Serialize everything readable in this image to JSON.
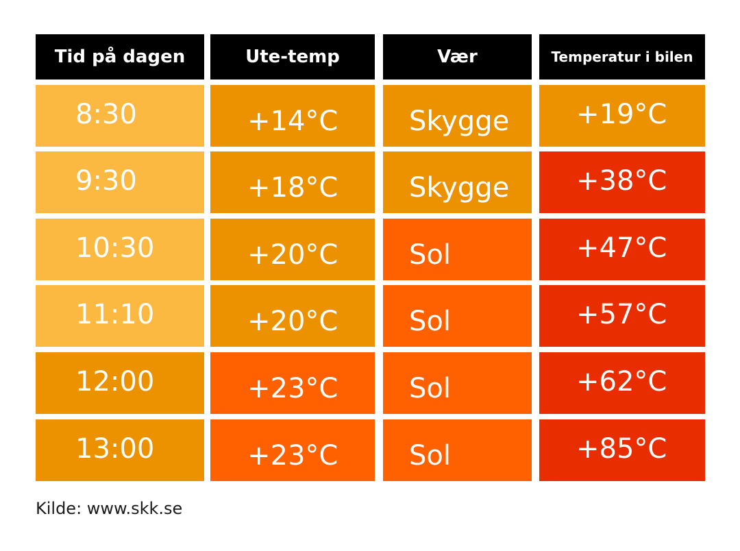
{
  "colors": {
    "header_bg": "#000000",
    "light_amber": "#FBB941",
    "amber": "#EC9200",
    "orange": "#FF6000",
    "red": "#E82E00",
    "text": "#FFFFFF"
  },
  "chart_data": {
    "type": "table",
    "columns": [
      "Tid på dagen",
      "Ute-temp",
      "Vær",
      "Temperatur i bilen"
    ],
    "rows": [
      {
        "time": "8:30",
        "outside": "+14°C",
        "weather": "Skygge",
        "car": "+19°C"
      },
      {
        "time": "9:30",
        "outside": "+18°C",
        "weather": "Skygge",
        "car": "+38°C"
      },
      {
        "time": "10:30",
        "outside": "+20°C",
        "weather": "Sol",
        "car": "+47°C"
      },
      {
        "time": "11:10",
        "outside": "+20°C",
        "weather": "Sol",
        "car": "+57°C"
      },
      {
        "time": "12:00",
        "outside": "+23°C",
        "weather": "Sol",
        "car": "+62°C"
      },
      {
        "time": "13:00",
        "outside": "+23°C",
        "weather": "Sol",
        "car": "+85°C"
      }
    ],
    "cell_colors": [
      [
        "light_amber",
        "amber",
        "amber",
        "amber"
      ],
      [
        "light_amber",
        "amber",
        "amber",
        "red"
      ],
      [
        "light_amber",
        "amber",
        "orange",
        "red"
      ],
      [
        "light_amber",
        "amber",
        "orange",
        "red"
      ],
      [
        "amber",
        "orange",
        "orange",
        "red"
      ],
      [
        "amber",
        "orange",
        "orange",
        "red"
      ]
    ]
  },
  "source": "Kilde: www.skk.se"
}
